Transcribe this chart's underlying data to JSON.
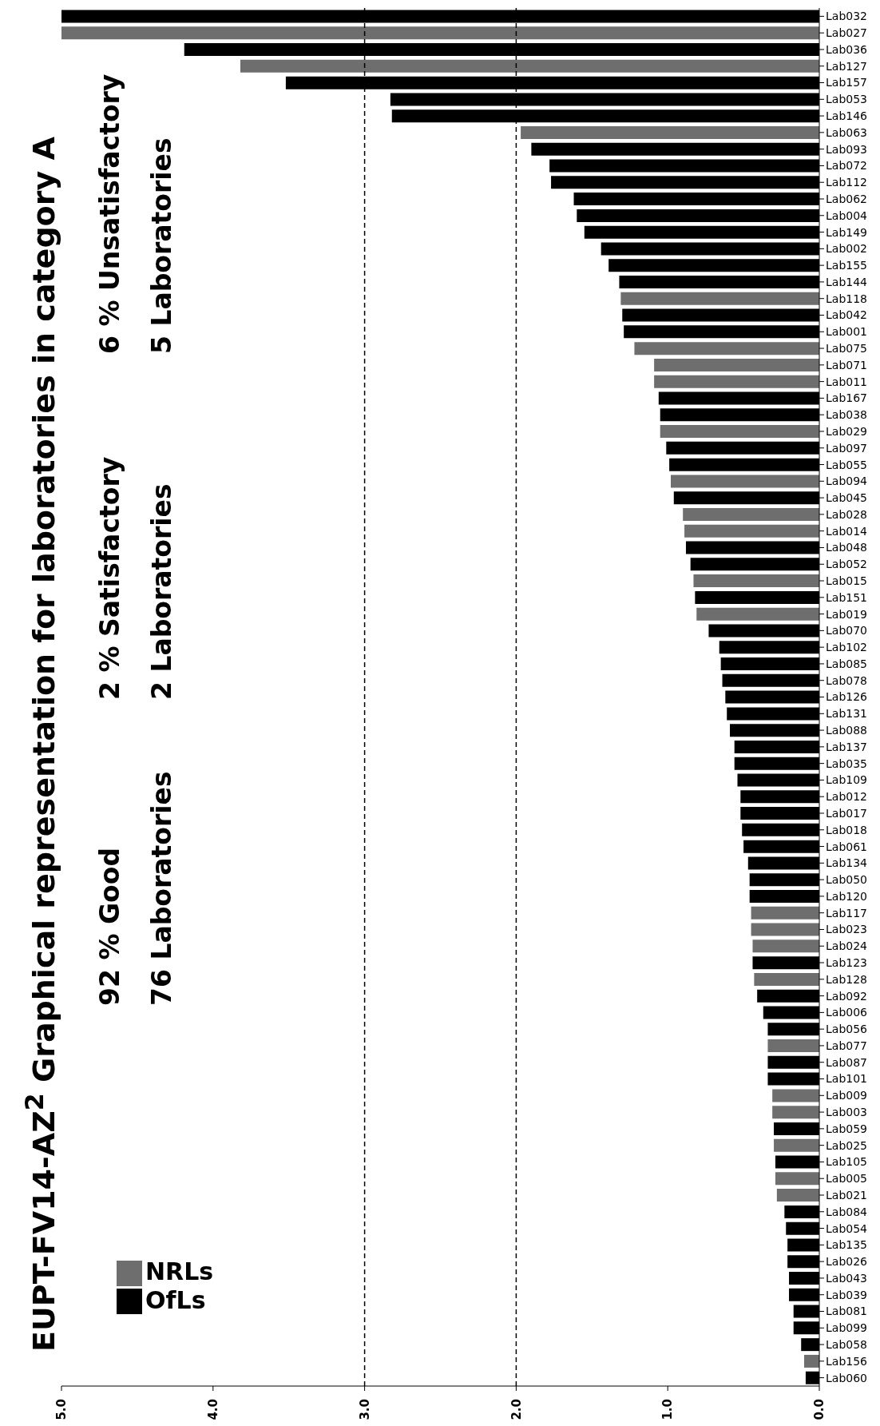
{
  "chart_data": {
    "type": "bar",
    "title": "EUPT-FV14-AZ$^{2}$ Graphical representation for laboratories in category A",
    "orientation": "horizontal",
    "categories": [
      "Lab032",
      "Lab027",
      "Lab036",
      "Lab127",
      "Lab157",
      "Lab053",
      "Lab146",
      "Lab063",
      "Lab093",
      "Lab072",
      "Lab112",
      "Lab062",
      "Lab004",
      "Lab149",
      "Lab002",
      "Lab155",
      "Lab144",
      "Lab118",
      "Lab042",
      "Lab001",
      "Lab075",
      "Lab071",
      "Lab011",
      "Lab167",
      "Lab038",
      "Lab029",
      "Lab097",
      "Lab055",
      "Lab094",
      "Lab045",
      "Lab028",
      "Lab014",
      "Lab048",
      "Lab052",
      "Lab015",
      "Lab151",
      "Lab019",
      "Lab070",
      "Lab102",
      "Lab085",
      "Lab078",
      "Lab126",
      "Lab131",
      "Lab088",
      "Lab137",
      "Lab035",
      "Lab109",
      "Lab012",
      "Lab017",
      "Lab018",
      "Lab061",
      "Lab134",
      "Lab050",
      "Lab120",
      "Lab117",
      "Lab023",
      "Lab024",
      "Lab123",
      "Lab128",
      "Lab092",
      "Lab006",
      "Lab056",
      "Lab077",
      "Lab087",
      "Lab101",
      "Lab009",
      "Lab003",
      "Lab059",
      "Lab025",
      "Lab105",
      "Lab005",
      "Lab021",
      "Lab084",
      "Lab054",
      "Lab135",
      "Lab026",
      "Lab043",
      "Lab039",
      "Lab081",
      "Lab099",
      "Lab058",
      "Lab156",
      "Lab060"
    ],
    "series": [
      {
        "name": "NRLs",
        "color": "#6e6e6e",
        "values": [
          null,
          5.0,
          null,
          3.82,
          null,
          null,
          null,
          1.97,
          null,
          null,
          null,
          null,
          null,
          null,
          null,
          null,
          null,
          1.31,
          null,
          null,
          1.22,
          1.09,
          1.09,
          null,
          null,
          1.05,
          null,
          null,
          0.98,
          null,
          0.9,
          0.89,
          null,
          null,
          0.83,
          null,
          0.81,
          null,
          null,
          null,
          null,
          null,
          null,
          null,
          null,
          null,
          null,
          null,
          null,
          null,
          null,
          null,
          null,
          null,
          0.45,
          0.45,
          0.44,
          null,
          0.43,
          null,
          null,
          null,
          0.34,
          null,
          null,
          0.31,
          0.31,
          null,
          0.3,
          null,
          0.29,
          0.28,
          null,
          null,
          null,
          null,
          null,
          null,
          null,
          null,
          null,
          0.1,
          null
        ]
      },
      {
        "name": "OfLs",
        "color": "#000000",
        "values": [
          5.0,
          null,
          4.19,
          null,
          3.52,
          2.83,
          2.82,
          null,
          1.9,
          1.78,
          1.77,
          1.62,
          1.6,
          1.55,
          1.44,
          1.39,
          1.32,
          null,
          1.3,
          1.29,
          null,
          null,
          null,
          1.06,
          1.05,
          null,
          1.01,
          0.99,
          null,
          0.96,
          null,
          null,
          0.88,
          0.85,
          null,
          0.82,
          null,
          0.73,
          0.66,
          0.65,
          0.64,
          0.62,
          0.61,
          0.59,
          0.56,
          0.56,
          0.54,
          0.52,
          0.52,
          0.51,
          0.5,
          0.47,
          0.46,
          0.46,
          null,
          null,
          null,
          0.44,
          null,
          0.41,
          0.37,
          0.34,
          null,
          0.34,
          0.34,
          null,
          null,
          0.3,
          null,
          0.29,
          null,
          null,
          0.23,
          0.22,
          0.21,
          0.21,
          0.2,
          0.2,
          0.17,
          0.17,
          0.12,
          null,
          0.09
        ]
      }
    ],
    "stacked": true,
    "xlim": [
      5,
      0
    ],
    "xticks": [
      {
        "value": 5,
        "label": "5.0"
      },
      {
        "value": 4,
        "label": "4.0"
      },
      {
        "value": 3,
        "label": "3.0"
      },
      {
        "value": 2,
        "label": "2.0"
      },
      {
        "value": 1,
        "label": "1.0"
      },
      {
        "value": 0,
        "label": "0.0"
      }
    ],
    "ref_lines": [
      {
        "axis": "x",
        "value": 3,
        "line_style": "dashed",
        "color": "#000000"
      },
      {
        "axis": "x",
        "value": 2,
        "line_style": "dashed",
        "color": "#000000"
      }
    ],
    "annotations": [
      "92 % Good",
      "2 % Satisfactory",
      "6 % Unsatisfactory",
      "76 Laboratories",
      "2 Laboratories",
      "5 Laboratories"
    ],
    "legend": "bottom left",
    "grid": false
  }
}
